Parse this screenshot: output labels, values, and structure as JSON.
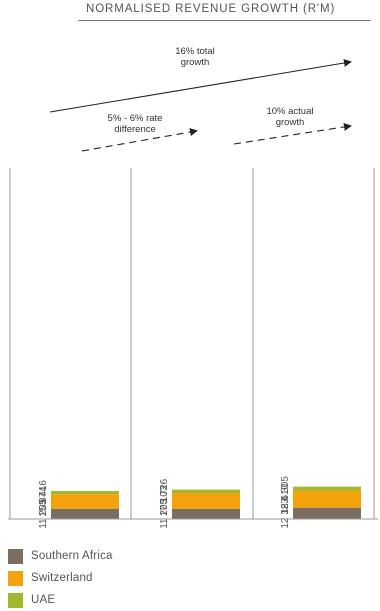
{
  "chart_data": {
    "type": "bar",
    "stacked": true,
    "title": "NORMALISED REVENUE GROWTH (R'M)",
    "categories": [
      "",
      "",
      ""
    ],
    "series": [
      {
        "name": "Southern Africa",
        "color": "#7a6e61",
        "values": [
          11205,
          11205,
          12323
        ],
        "labels": [
          "11 205",
          "11 205",
          "12 323"
        ]
      },
      {
        "name": "Switzerland",
        "color": "#f4a20c",
        "values": [
          15874,
          17103,
          18610
        ],
        "labels": [
          "15 874",
          "17 103",
          "18 610"
        ]
      },
      {
        "name": "UAE",
        "color": "#a3b72c",
        "values": [
          3416,
          3726,
          4305
        ],
        "labels": [
          "3 416",
          "3 726",
          "4 305"
        ]
      }
    ],
    "annotations": [
      {
        "id": "total",
        "lines": [
          "16% total",
          "growth"
        ]
      },
      {
        "id": "rate",
        "lines": [
          "5% - 6% rate",
          "difference"
        ]
      },
      {
        "id": "actual",
        "lines": [
          "10% actual",
          "growth"
        ]
      }
    ],
    "legend_position": "bottom-left",
    "grid": false
  }
}
